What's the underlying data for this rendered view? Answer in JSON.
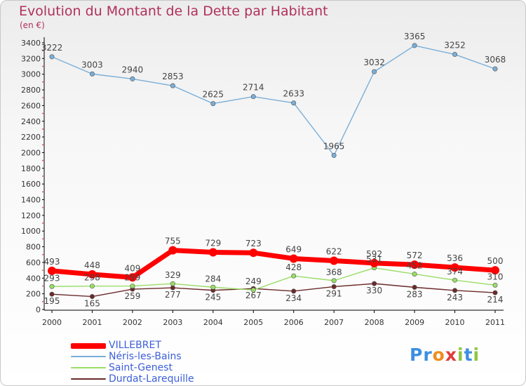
{
  "title": "Evolution du Montant de la Dette par Habitant",
  "unit": "(en €)",
  "logo": "Proxiti",
  "chart_data": {
    "type": "line",
    "x": [
      "2000",
      "2001",
      "2002",
      "2003",
      "2004",
      "2005",
      "2006",
      "2007",
      "2008",
      "2009",
      "2010",
      "2011"
    ],
    "ylim": [
      0,
      3400
    ],
    "yticks": [
      0,
      200,
      400,
      600,
      800,
      1000,
      1200,
      1400,
      1600,
      1800,
      2000,
      2200,
      2400,
      2600,
      2800,
      3000,
      3200,
      3400
    ],
    "grid": false,
    "legend_position": "bottom-left",
    "series": [
      {
        "name": "VILLEBRET",
        "color": "#ff0000",
        "values": [
          493,
          448,
          409,
          755,
          729,
          723,
          649,
          622,
          592,
          572,
          536,
          500
        ]
      },
      {
        "name": "Néris-les-Bains",
        "color": "#7aaed8",
        "values": [
          3222,
          3003,
          2940,
          2853,
          2625,
          2714,
          2633,
          1965,
          3032,
          3365,
          3252,
          3068
        ]
      },
      {
        "name": "Saint-Genest",
        "color": "#99dd66",
        "values": [
          293,
          298,
          299,
          329,
          284,
          249,
          428,
          368,
          531,
          452,
          374,
          310
        ]
      },
      {
        "name": "Durdat-Larequille",
        "color": "#6b2a2a",
        "values": [
          195,
          165,
          259,
          277,
          245,
          267,
          234,
          291,
          330,
          283,
          243,
          214
        ]
      }
    ]
  }
}
